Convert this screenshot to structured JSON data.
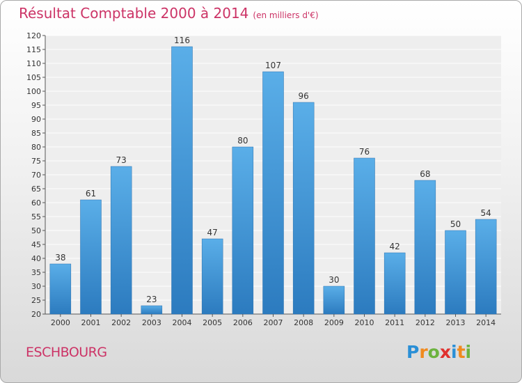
{
  "title": "Résultat Comptable 2000 à 2014",
  "subtitle": "(en milliers d'€)",
  "town": "ESCHBOURG",
  "logo": {
    "letters": [
      "P",
      "r",
      "o",
      "x",
      "i",
      "t",
      "i"
    ],
    "colors": [
      "#2a8fd6",
      "#f08a1e",
      "#6cb33f",
      "#e0302e",
      "#2a8fd6",
      "#f08a1e",
      "#6cb33f"
    ]
  },
  "colors": {
    "bar_top": "#5aaee8",
    "bar_bottom": "#2c7bbf",
    "title": "#cc3366"
  },
  "chart_data": {
    "type": "bar",
    "title": "Résultat Comptable 2000 à 2014",
    "xlabel": "",
    "ylabel": "(en milliers d'€)",
    "ylim": [
      20,
      120
    ],
    "ytick_step": 5,
    "grid": true,
    "categories": [
      "2000",
      "2001",
      "2002",
      "2003",
      "2004",
      "2005",
      "2006",
      "2007",
      "2008",
      "2009",
      "2010",
      "2011",
      "2012",
      "2013",
      "2014"
    ],
    "values": [
      38,
      61,
      73,
      23,
      116,
      47,
      80,
      107,
      96,
      30,
      76,
      42,
      68,
      50,
      54
    ]
  }
}
